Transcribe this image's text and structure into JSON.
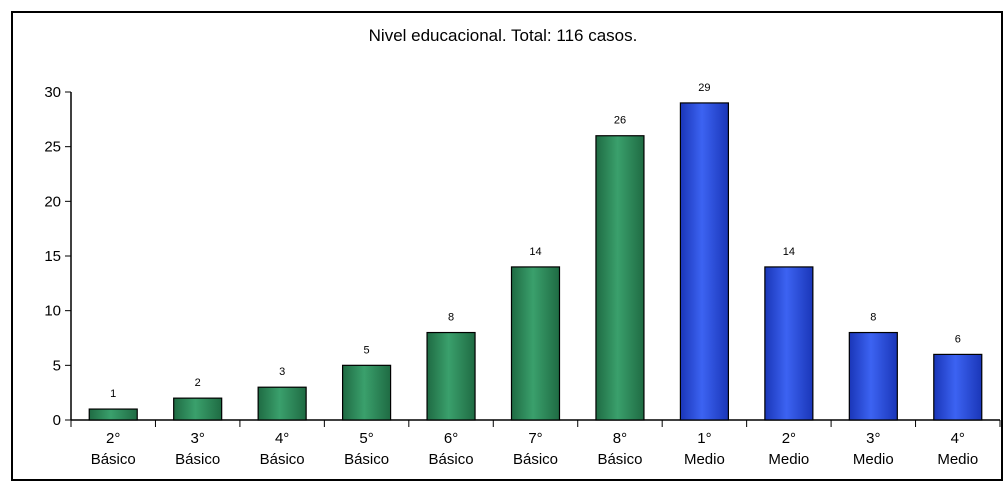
{
  "chart_data": {
    "type": "bar",
    "title": "Nivel educacional. Total: 116 casos.",
    "categories": [
      [
        "2°",
        "Básico"
      ],
      [
        "3°",
        "Básico"
      ],
      [
        "4°",
        "Básico"
      ],
      [
        "5°",
        "Básico"
      ],
      [
        "6°",
        "Básico"
      ],
      [
        "7°",
        "Básico"
      ],
      [
        "8°",
        "Básico"
      ],
      [
        "1°",
        "Medio"
      ],
      [
        "2°",
        "Medio"
      ],
      [
        "3°",
        "Medio"
      ],
      [
        "4°",
        "Medio"
      ]
    ],
    "values": [
      1,
      2,
      3,
      5,
      8,
      14,
      26,
      29,
      14,
      8,
      6
    ],
    "data_labels": [
      "1",
      "2",
      "3",
      "5",
      "8",
      "14",
      "26",
      "29",
      "14",
      "8",
      "6"
    ],
    "bar_colors": [
      "#2e8b5a",
      "#2e8b5a",
      "#2e8b5a",
      "#2e8b5a",
      "#2e8b5a",
      "#2e8b5a",
      "#2e8b5a",
      "#2a4fe0",
      "#2a4fe0",
      "#2a4fe0",
      "#2a4fe0"
    ],
    "ylim": [
      0,
      30
    ],
    "yticks": [
      0,
      5,
      10,
      15,
      20,
      25,
      30
    ],
    "ytick_labels": [
      "0",
      "5",
      "10",
      "15",
      "20",
      "25",
      "30"
    ],
    "xlabel": "",
    "ylabel": "",
    "grid": false,
    "legend": "none"
  }
}
